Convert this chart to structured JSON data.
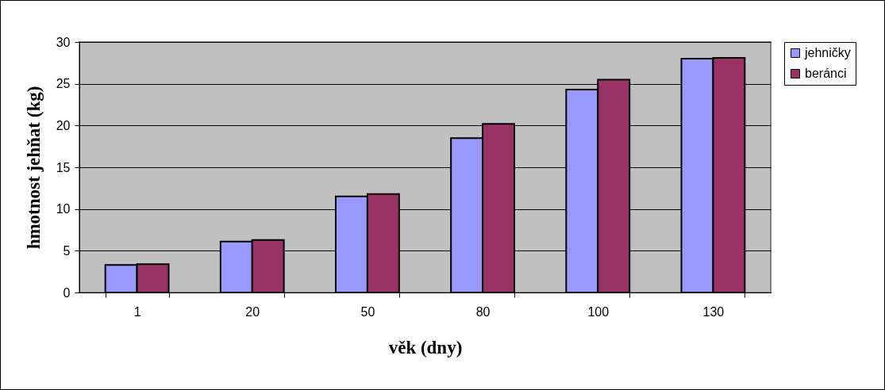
{
  "chart_data": {
    "type": "bar",
    "xlabel": "věk (dny)",
    "ylabel": "hmotnost jehňat (kg)",
    "categories": [
      "1",
      "20",
      "50",
      "80",
      "100",
      "130"
    ],
    "series": [
      {
        "name": "jehničky",
        "color": "#9999ff",
        "values": [
          3.3,
          6.1,
          11.5,
          18.5,
          24.3,
          28.0
        ]
      },
      {
        "name": "beránci",
        "color": "#993366",
        "values": [
          3.4,
          6.3,
          11.8,
          20.2,
          25.5,
          28.1
        ]
      }
    ],
    "ylim": [
      0,
      30
    ],
    "yticks": [
      0,
      5,
      10,
      15,
      20,
      25,
      30
    ],
    "grid": "y",
    "legend": "right"
  }
}
